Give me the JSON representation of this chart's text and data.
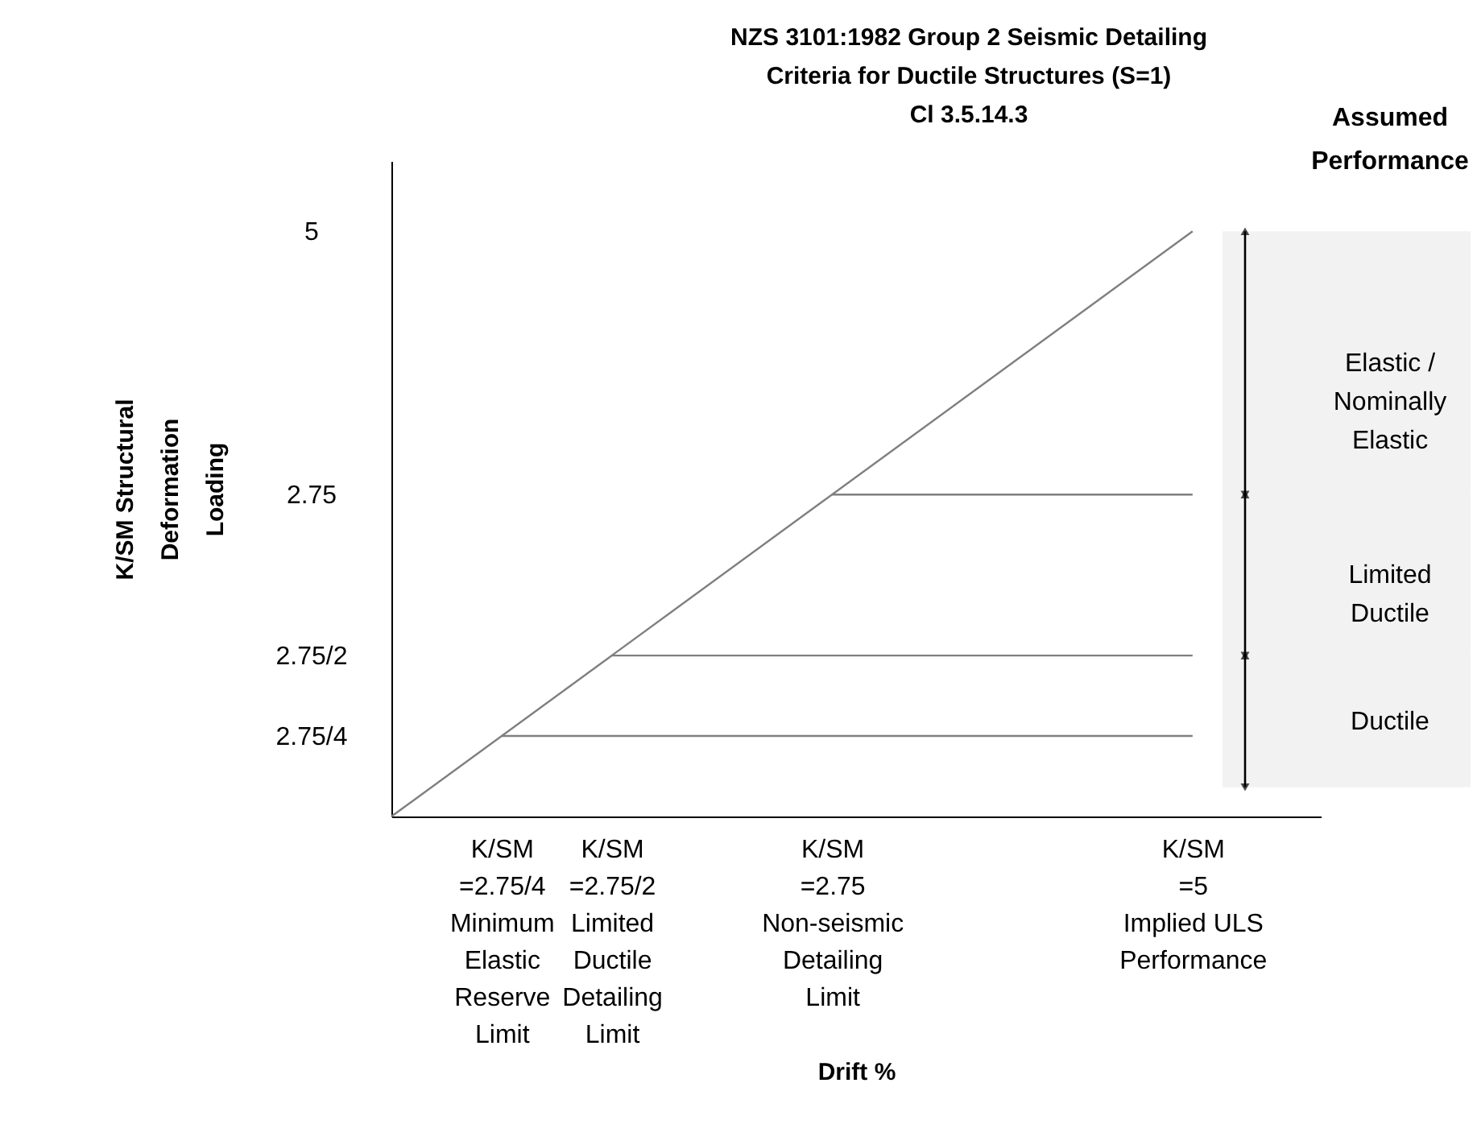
{
  "chart_data": {
    "type": "line",
    "title": "NZS 3101:1982 Group 2 Seismic Detailing\nCriteria for Ductile Structures (S=1)\nCl 3.5.14.3",
    "xlabel": "Drift %",
    "ylabel": "K/SM Structural\nDeformation\nLoading",
    "xlim": [
      0,
      5.8
    ],
    "ylim": [
      0,
      5.6
    ],
    "xticks": [
      {
        "value": 0.6875,
        "label": "K/SM\n=2.75/4\nMinimum\nElastic\nReserve\nLimit"
      },
      {
        "value": 1.375,
        "label": "K/SM\n=2.75/2\nLimited\nDuctile\nDetailing\nLimit"
      },
      {
        "value": 2.75,
        "label": "K/SM\n=2.75\nNon-seismic\nDetailing\nLimit"
      },
      {
        "value": 5,
        "label": "K/SM\n=5\nImplied ULS\nPerformance"
      }
    ],
    "yticks": [
      {
        "value": 0.6875,
        "label": "2.75/4"
      },
      {
        "value": 1.375,
        "label": "2.75/2"
      },
      2.75,
      5
    ],
    "series": [
      {
        "color": "#7f7f7f",
        "x": [
          0,
          5
        ],
        "values": [
          0,
          5
        ]
      },
      {
        "color": "#7f7f7f",
        "x": [
          0.6875,
          5
        ],
        "values": [
          0.6875,
          0.6875
        ]
      },
      {
        "color": "#7f7f7f",
        "x": [
          1.375,
          5
        ],
        "values": [
          1.375,
          1.375
        ]
      },
      {
        "color": "#7f7f7f",
        "x": [
          2.75,
          5
        ],
        "values": [
          2.75,
          2.75
        ]
      }
    ],
    "bands": [
      {
        "axis": "y",
        "from": 2.75,
        "to": 5,
        "label": "Elastic /\nNominally\nElastic",
        "color": "#000000"
      },
      {
        "axis": "y",
        "from": 1.375,
        "to": 2.75,
        "label": "Limited\nDuctile",
        "color": "#000000"
      },
      {
        "axis": "y",
        "from": 0.25,
        "to": 1.375,
        "label": "Ductile",
        "color": "#000000"
      }
    ],
    "annotations": [
      "Assumed\nPerformance"
    ],
    "marker": "none",
    "line_style": "solid",
    "grid": false
  }
}
